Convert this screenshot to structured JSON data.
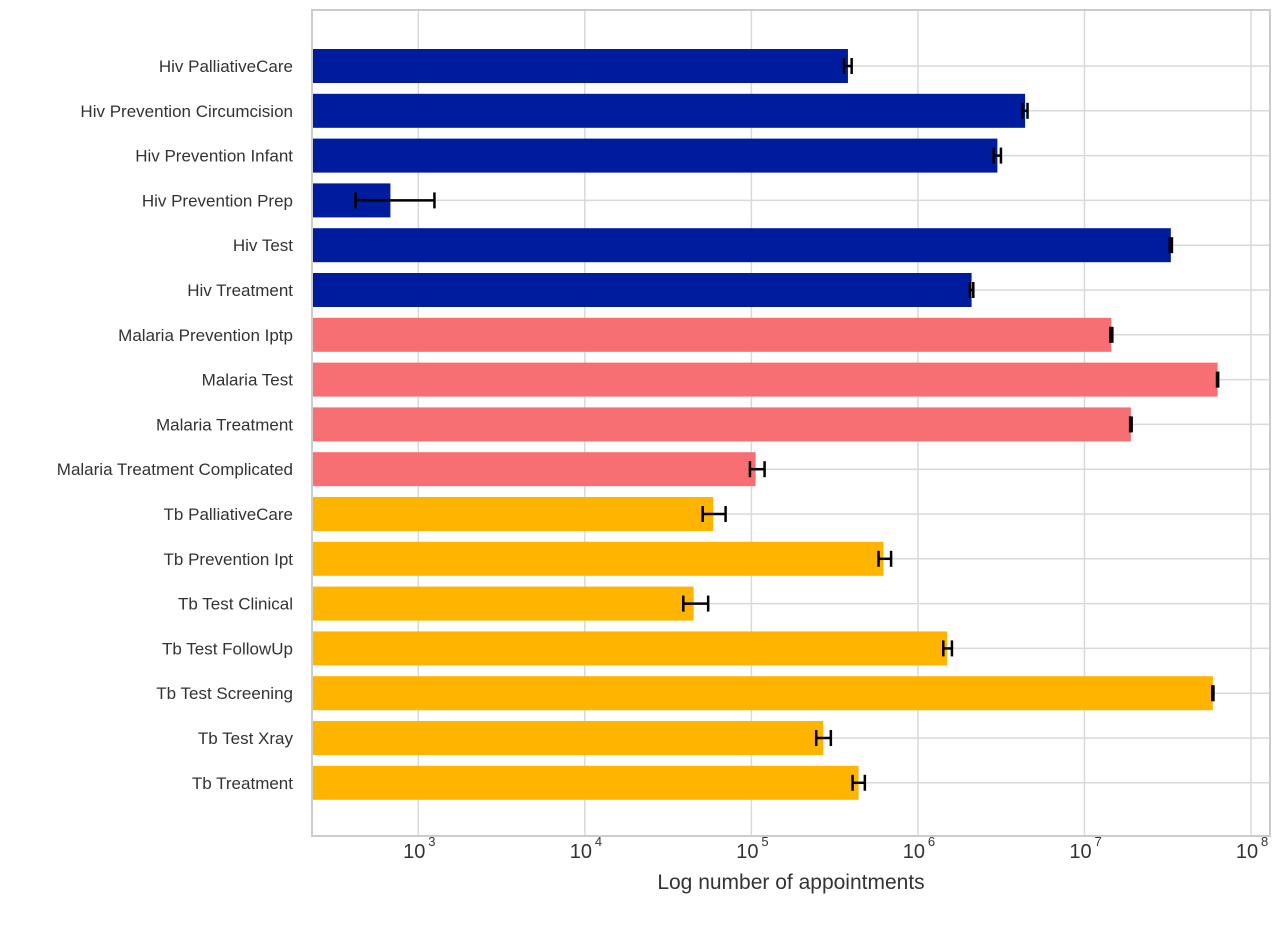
{
  "chart_data": {
    "type": "bar",
    "orientation": "horizontal",
    "xlabel": "Log number of appointments",
    "ylabel": "",
    "xscale": "log",
    "xlim": [
      230,
      130000000
    ],
    "xticks": [
      1000,
      10000,
      100000,
      1000000,
      10000000,
      100000000
    ],
    "xtick_labels": [
      {
        "base": "10",
        "exp": "3"
      },
      {
        "base": "10",
        "exp": "4"
      },
      {
        "base": "10",
        "exp": "5"
      },
      {
        "base": "10",
        "exp": "6"
      },
      {
        "base": "10",
        "exp": "7"
      },
      {
        "base": "10",
        "exp": "8"
      }
    ],
    "grid": true,
    "colors": {
      "Hiv": "#001c9e",
      "Malaria": "#f76e73",
      "Tb": "#ffb400"
    },
    "categories": [
      "Hiv PalliativeCare",
      "Hiv Prevention Circumcision",
      "Hiv Prevention Infant",
      "Hiv Prevention Prep",
      "Hiv Test",
      "Hiv Treatment",
      "Malaria Prevention Iptp",
      "Malaria Test",
      "Malaria Treatment",
      "Malaria Treatment Complicated",
      "Tb PalliativeCare",
      "Tb Prevention Ipt",
      "Tb Test Clinical",
      "Tb Test FollowUp",
      "Tb Test Screening",
      "Tb Test Xray",
      "Tb Treatment"
    ],
    "groups": [
      "Hiv",
      "Hiv",
      "Hiv",
      "Hiv",
      "Hiv",
      "Hiv",
      "Malaria",
      "Malaria",
      "Malaria",
      "Malaria",
      "Tb",
      "Tb",
      "Tb",
      "Tb",
      "Tb",
      "Tb",
      "Tb"
    ],
    "values": [
      380000,
      4400000,
      3000000,
      680,
      33000000,
      2100000,
      14500000,
      63000000,
      19000000,
      106000,
      59000,
      620000,
      45000,
      1500000,
      59000000,
      270000,
      440000
    ],
    "error_low": [
      360000,
      4250000,
      2850000,
      420,
      32500000,
      2050000,
      14300000,
      62500000,
      18800000,
      98000,
      51000,
      580000,
      39000,
      1420000,
      58500000,
      245000,
      405000
    ],
    "error_high": [
      400000,
      4550000,
      3150000,
      1250,
      33500000,
      2150000,
      14700000,
      63500000,
      19200000,
      120000,
      70000,
      690000,
      55000,
      1600000,
      59500000,
      300000,
      480000
    ]
  }
}
